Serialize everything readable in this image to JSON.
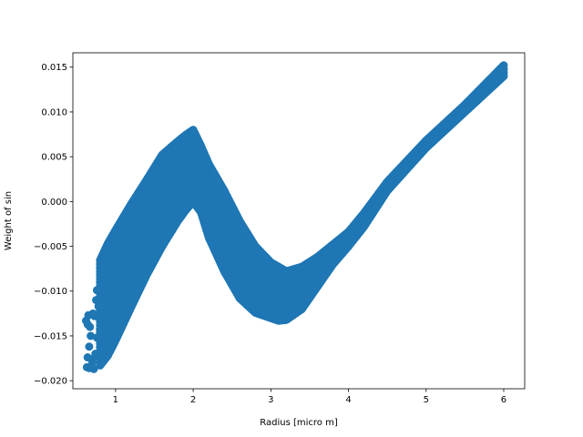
{
  "chart_data": {
    "type": "scatter",
    "title": "",
    "xlabel": "Radius [micro m]",
    "ylabel": "Weight of  sin",
    "xlim": [
      0.45,
      6.27
    ],
    "ylim": [
      -0.0209,
      0.0166
    ],
    "xticks": [
      1,
      2,
      3,
      4,
      5,
      6
    ],
    "xtick_labels": [
      "1",
      "2",
      "3",
      "4",
      "5",
      "6"
    ],
    "yticks": [
      -0.02,
      -0.015,
      -0.01,
      -0.005,
      0.0,
      0.005,
      0.01,
      0.015
    ],
    "ytick_labels": [
      "−0.020",
      "−0.015",
      "−0.010",
      "−0.005",
      "0.000",
      "0.005",
      "0.010",
      "0.015"
    ],
    "grid": false,
    "legend": "none",
    "color": "#1f77b4",
    "series": [
      {
        "upper_edge": {
          "x": [
            0.75,
            0.9,
            1.0,
            1.2,
            1.4,
            1.6,
            1.8,
            1.9,
            2.0,
            2.1,
            2.2,
            2.4,
            2.6,
            2.8,
            3.0,
            3.1,
            3.2,
            3.4,
            3.6,
            3.8,
            4.0,
            4.2,
            4.5,
            5.0,
            5.5,
            6.0
          ],
          "y": [
            -0.0075,
            -0.0047,
            -0.0032,
            -0.0003,
            0.0024,
            0.0052,
            0.0067,
            0.0074,
            0.008,
            0.0062,
            0.0042,
            0.0012,
            -0.0022,
            -0.005,
            -0.0068,
            -0.0073,
            -0.0078,
            -0.0073,
            -0.0062,
            -0.0048,
            -0.0034,
            -0.0013,
            0.0022,
            0.0068,
            0.0108,
            0.0152
          ]
        },
        "lower_edge": {
          "x": [
            0.8,
            0.9,
            1.0,
            1.2,
            1.4,
            1.6,
            1.8,
            1.9,
            2.0,
            2.1,
            2.2,
            2.4,
            2.6,
            2.8,
            3.0,
            3.1,
            3.2,
            3.4,
            3.6,
            3.8,
            4.0,
            4.2,
            4.5,
            5.0,
            5.5,
            6.0
          ],
          "y": [
            -0.0183,
            -0.0172,
            -0.0155,
            -0.0118,
            -0.0082,
            -0.005,
            -0.0022,
            -0.001,
            0.0,
            -0.0012,
            -0.004,
            -0.0078,
            -0.0108,
            -0.0124,
            -0.013,
            -0.0133,
            -0.0132,
            -0.012,
            -0.0095,
            -0.007,
            -0.005,
            -0.0028,
            0.0012,
            0.006,
            0.01,
            0.014
          ]
        },
        "outliers": {
          "x": [
            0.62,
            0.64,
            0.65,
            0.66,
            0.68,
            0.7,
            0.72,
            0.74,
            0.76,
            0.66,
            0.7,
            0.73,
            0.76,
            0.78,
            0.8,
            0.64,
            0.69,
            0.75,
            0.79,
            0.63,
            0.67,
            0.71
          ],
          "y": [
            -0.0133,
            -0.0137,
            -0.0127,
            -0.0162,
            -0.015,
            -0.018,
            -0.0187,
            -0.017,
            -0.0152,
            -0.0186,
            -0.0176,
            -0.0128,
            -0.0099,
            -0.0117,
            -0.0143,
            -0.0174,
            -0.0183,
            -0.011,
            -0.013,
            -0.0185,
            -0.014,
            -0.0125
          ]
        }
      }
    ]
  }
}
